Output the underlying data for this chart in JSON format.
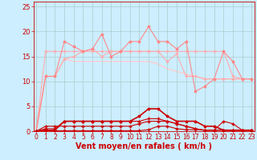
{
  "bg_color": "#cceeff",
  "grid_color": "#aacccc",
  "xlabel": "Vent moyen/en rafales ( km/h )",
  "xlabel_color": "#cc0000",
  "xlabel_fontsize": 7,
  "xtick_fontsize": 5.5,
  "ytick_fontsize": 6,
  "xlim": [
    -0.3,
    23.3
  ],
  "ylim": [
    0,
    26
  ],
  "yticks": [
    0,
    5,
    10,
    15,
    20,
    25
  ],
  "xticks": [
    0,
    1,
    2,
    3,
    4,
    5,
    6,
    7,
    8,
    9,
    10,
    11,
    12,
    13,
    14,
    15,
    16,
    17,
    18,
    19,
    20,
    21,
    22,
    23
  ],
  "series": [
    {
      "x": [
        0,
        1,
        2,
        3,
        4,
        5,
        6,
        7,
        8,
        9,
        10,
        11,
        12,
        13,
        14,
        15,
        16,
        17,
        18,
        19,
        20,
        21,
        22,
        23
      ],
      "y": [
        0,
        11,
        11,
        18,
        17,
        16,
        16.5,
        19.5,
        15,
        16,
        18,
        18,
        21,
        18,
        18,
        16.5,
        18,
        8,
        9,
        10.5,
        16,
        14,
        10.5,
        10.5
      ],
      "color": "#ff8888",
      "lw": 0.8,
      "marker": "*",
      "ms": 2.5,
      "zorder": 3
    },
    {
      "x": [
        0,
        1,
        2,
        3,
        4,
        5,
        6,
        7,
        8,
        9,
        10,
        11,
        12,
        13,
        14,
        15,
        16,
        17,
        18,
        19,
        20,
        21,
        22,
        23
      ],
      "y": [
        0,
        16,
        16,
        16,
        16,
        16,
        16,
        16,
        16,
        16,
        16,
        16,
        16,
        16,
        16,
        16,
        16,
        16,
        16,
        16,
        16,
        11,
        10.5,
        10.5
      ],
      "color": "#ffaaaa",
      "lw": 0.8,
      "marker": "+",
      "ms": 2.5,
      "zorder": 2
    },
    {
      "x": [
        0,
        1,
        2,
        3,
        4,
        5,
        6,
        7,
        8,
        9,
        10,
        11,
        12,
        13,
        14,
        15,
        16,
        17,
        18,
        19,
        20,
        21,
        22,
        23
      ],
      "y": [
        0,
        11,
        11,
        14.5,
        15,
        16,
        16.5,
        15,
        16,
        16,
        16,
        16,
        16,
        16,
        14,
        15.5,
        11,
        11,
        10.5,
        10.5,
        10.5,
        10.5,
        10.5,
        10.5
      ],
      "color": "#ffaaaa",
      "lw": 0.8,
      "marker": "+",
      "ms": 2.5,
      "zorder": 2
    },
    {
      "x": [
        0,
        1,
        2,
        3,
        4,
        5,
        6,
        7,
        8,
        9,
        10,
        11,
        12,
        13,
        14,
        15,
        16,
        17,
        18,
        19,
        20,
        21,
        22,
        23
      ],
      "y": [
        0,
        11,
        11,
        14.5,
        14,
        14,
        14,
        14,
        14,
        14,
        14,
        14,
        14,
        13.5,
        12.5,
        12,
        11.5,
        11,
        10.5,
        10.5,
        10.5,
        10.5,
        10.5,
        10.5
      ],
      "color": "#ffcccc",
      "lw": 1.0,
      "marker": null,
      "ms": 0,
      "zorder": 1
    },
    {
      "x": [
        0,
        1,
        2,
        3,
        4,
        5,
        6,
        7,
        8,
        9,
        10,
        11,
        12,
        13,
        14,
        15,
        16,
        17,
        18,
        19,
        20,
        21,
        22,
        23
      ],
      "y": [
        0,
        0.2,
        0.2,
        2,
        2,
        2,
        2,
        2,
        2,
        2,
        2,
        3,
        4.5,
        4.5,
        3,
        2,
        2,
        2,
        1,
        1,
        0.2,
        0.2,
        0.2,
        0.2
      ],
      "color": "#cc0000",
      "lw": 1.2,
      "marker": "*",
      "ms": 2.5,
      "zorder": 5
    },
    {
      "x": [
        0,
        1,
        2,
        3,
        4,
        5,
        6,
        7,
        8,
        9,
        10,
        11,
        12,
        13,
        14,
        15,
        16,
        17,
        18,
        19,
        20,
        21,
        22,
        23
      ],
      "y": [
        0,
        1,
        1,
        1,
        1,
        1,
        1,
        1,
        1,
        1,
        1,
        1.5,
        2,
        2,
        2,
        1.5,
        1,
        0.5,
        0.2,
        0.2,
        0.2,
        0.2,
        0.2,
        0.2
      ],
      "color": "#cc0000",
      "lw": 0.8,
      "marker": "+",
      "ms": 2.5,
      "zorder": 4
    },
    {
      "x": [
        0,
        1,
        2,
        3,
        4,
        5,
        6,
        7,
        8,
        9,
        10,
        11,
        12,
        13,
        14,
        15,
        16,
        17,
        18,
        19,
        20,
        21,
        22,
        23
      ],
      "y": [
        0,
        0.5,
        0.5,
        2,
        2,
        2,
        2,
        2,
        2,
        2,
        2,
        2,
        2.5,
        2.5,
        2,
        1.5,
        1,
        0.5,
        0.2,
        0.2,
        2,
        1.5,
        0.2,
        0.2
      ],
      "color": "#cc0000",
      "lw": 0.8,
      "marker": "+",
      "ms": 2.5,
      "zorder": 4
    },
    {
      "x": [
        0,
        1,
        2,
        3,
        4,
        5,
        6,
        7,
        8,
        9,
        10,
        11,
        12,
        13,
        14,
        15,
        16,
        17,
        18,
        19,
        20,
        21,
        22,
        23
      ],
      "y": [
        0,
        0.1,
        0.1,
        0.1,
        0.1,
        0.1,
        0.1,
        0.1,
        0.1,
        0.1,
        0.1,
        0.1,
        0.3,
        1.0,
        1.0,
        0.5,
        0.3,
        0.3,
        0.2,
        0.2,
        0.2,
        0.2,
        0.2,
        0.2
      ],
      "color": "#cc0000",
      "lw": 0.8,
      "marker": "+",
      "ms": 2.5,
      "zorder": 4
    }
  ]
}
